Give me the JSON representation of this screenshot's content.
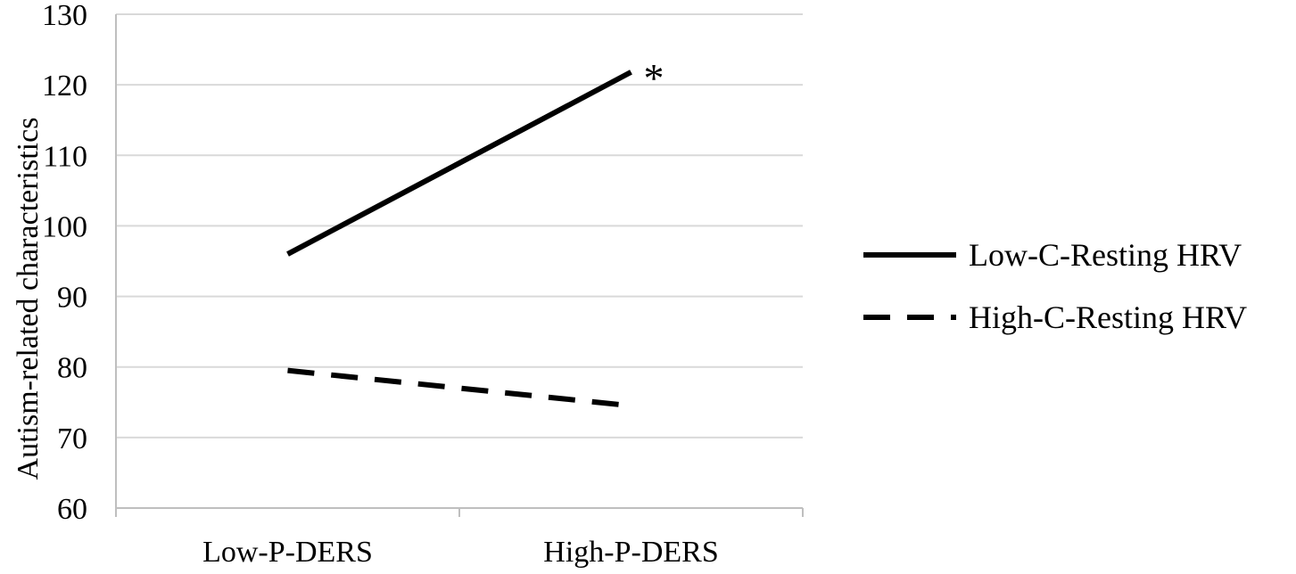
{
  "chart_data": {
    "type": "line",
    "title": "",
    "xlabel": "",
    "ylabel": "Autism-related characteristics",
    "categories": [
      "Low-P-DERS",
      "High-P-DERS"
    ],
    "ylim": [
      60,
      130
    ],
    "yticks": [
      60,
      70,
      80,
      90,
      100,
      110,
      120,
      130
    ],
    "grid": true,
    "legend_position": "right",
    "series": [
      {
        "name": "Low-C-Resting HRV",
        "values": [
          96,
          121.8
        ],
        "style": "solid",
        "color": "#000000"
      },
      {
        "name": "High-C-Resting HRV",
        "values": [
          79.5,
          74.5
        ],
        "style": "dashed",
        "color": "#000000"
      }
    ],
    "annotations": [
      {
        "text": "*",
        "series": 0,
        "point": 1
      }
    ]
  }
}
